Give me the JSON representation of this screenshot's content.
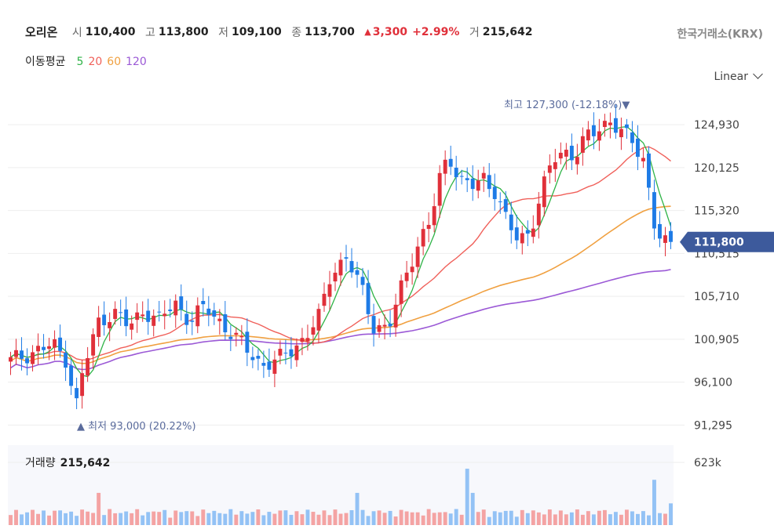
{
  "header": {
    "stock_name": "오리온",
    "open_label": "시",
    "open": "110,400",
    "high_label": "고",
    "high": "113,800",
    "low_label": "저",
    "low": "109,100",
    "close_label": "종",
    "close": "113,700",
    "change_arrow": "▲",
    "change": "3,300",
    "change_pct": "+2.99%",
    "volume_label": "거",
    "volume": "215,642",
    "exchange": "한국거래소(KRX)"
  },
  "ma_legend": {
    "label": "이동평균",
    "items": [
      {
        "period": "5",
        "color": "#2fb347"
      },
      {
        "period": "20",
        "color": "#f0605a"
      },
      {
        "period": "60",
        "color": "#f0a040"
      },
      {
        "period": "120",
        "color": "#9b59d6"
      }
    ]
  },
  "scale_selector": "Linear",
  "volume_panel": {
    "label": "거래량",
    "value": "215,642",
    "axis_label": "623k"
  },
  "chart_data": {
    "type": "candlestick",
    "y_ticks": [
      91295,
      96100,
      100905,
      105710,
      110515,
      115320,
      120125,
      124930
    ],
    "y_tick_labels": [
      "91,295",
      "96,100",
      "100,905",
      "105,710",
      "110,515",
      "115,320",
      "120,125",
      "124,930"
    ],
    "ylim": [
      90800,
      128800
    ],
    "current_price": 111800,
    "current_price_label": "111,800",
    "max_annotation": {
      "prefix": "최고",
      "value": "127,300",
      "pct": "(-12.18%)",
      "arrow": "▼",
      "price": 127300
    },
    "min_annotation": {
      "prefix": "최저",
      "value": "93,000",
      "pct": "(20.22%)",
      "arrow": "▲",
      "price": 93000
    },
    "up_color": "#e0303a",
    "down_color": "#1e7be6",
    "ma_colors": {
      "ma5": "#2fb347",
      "ma20": "#f0605a",
      "ma60": "#f0a040",
      "ma120": "#9b59d6"
    },
    "volume_max": 623000
  }
}
